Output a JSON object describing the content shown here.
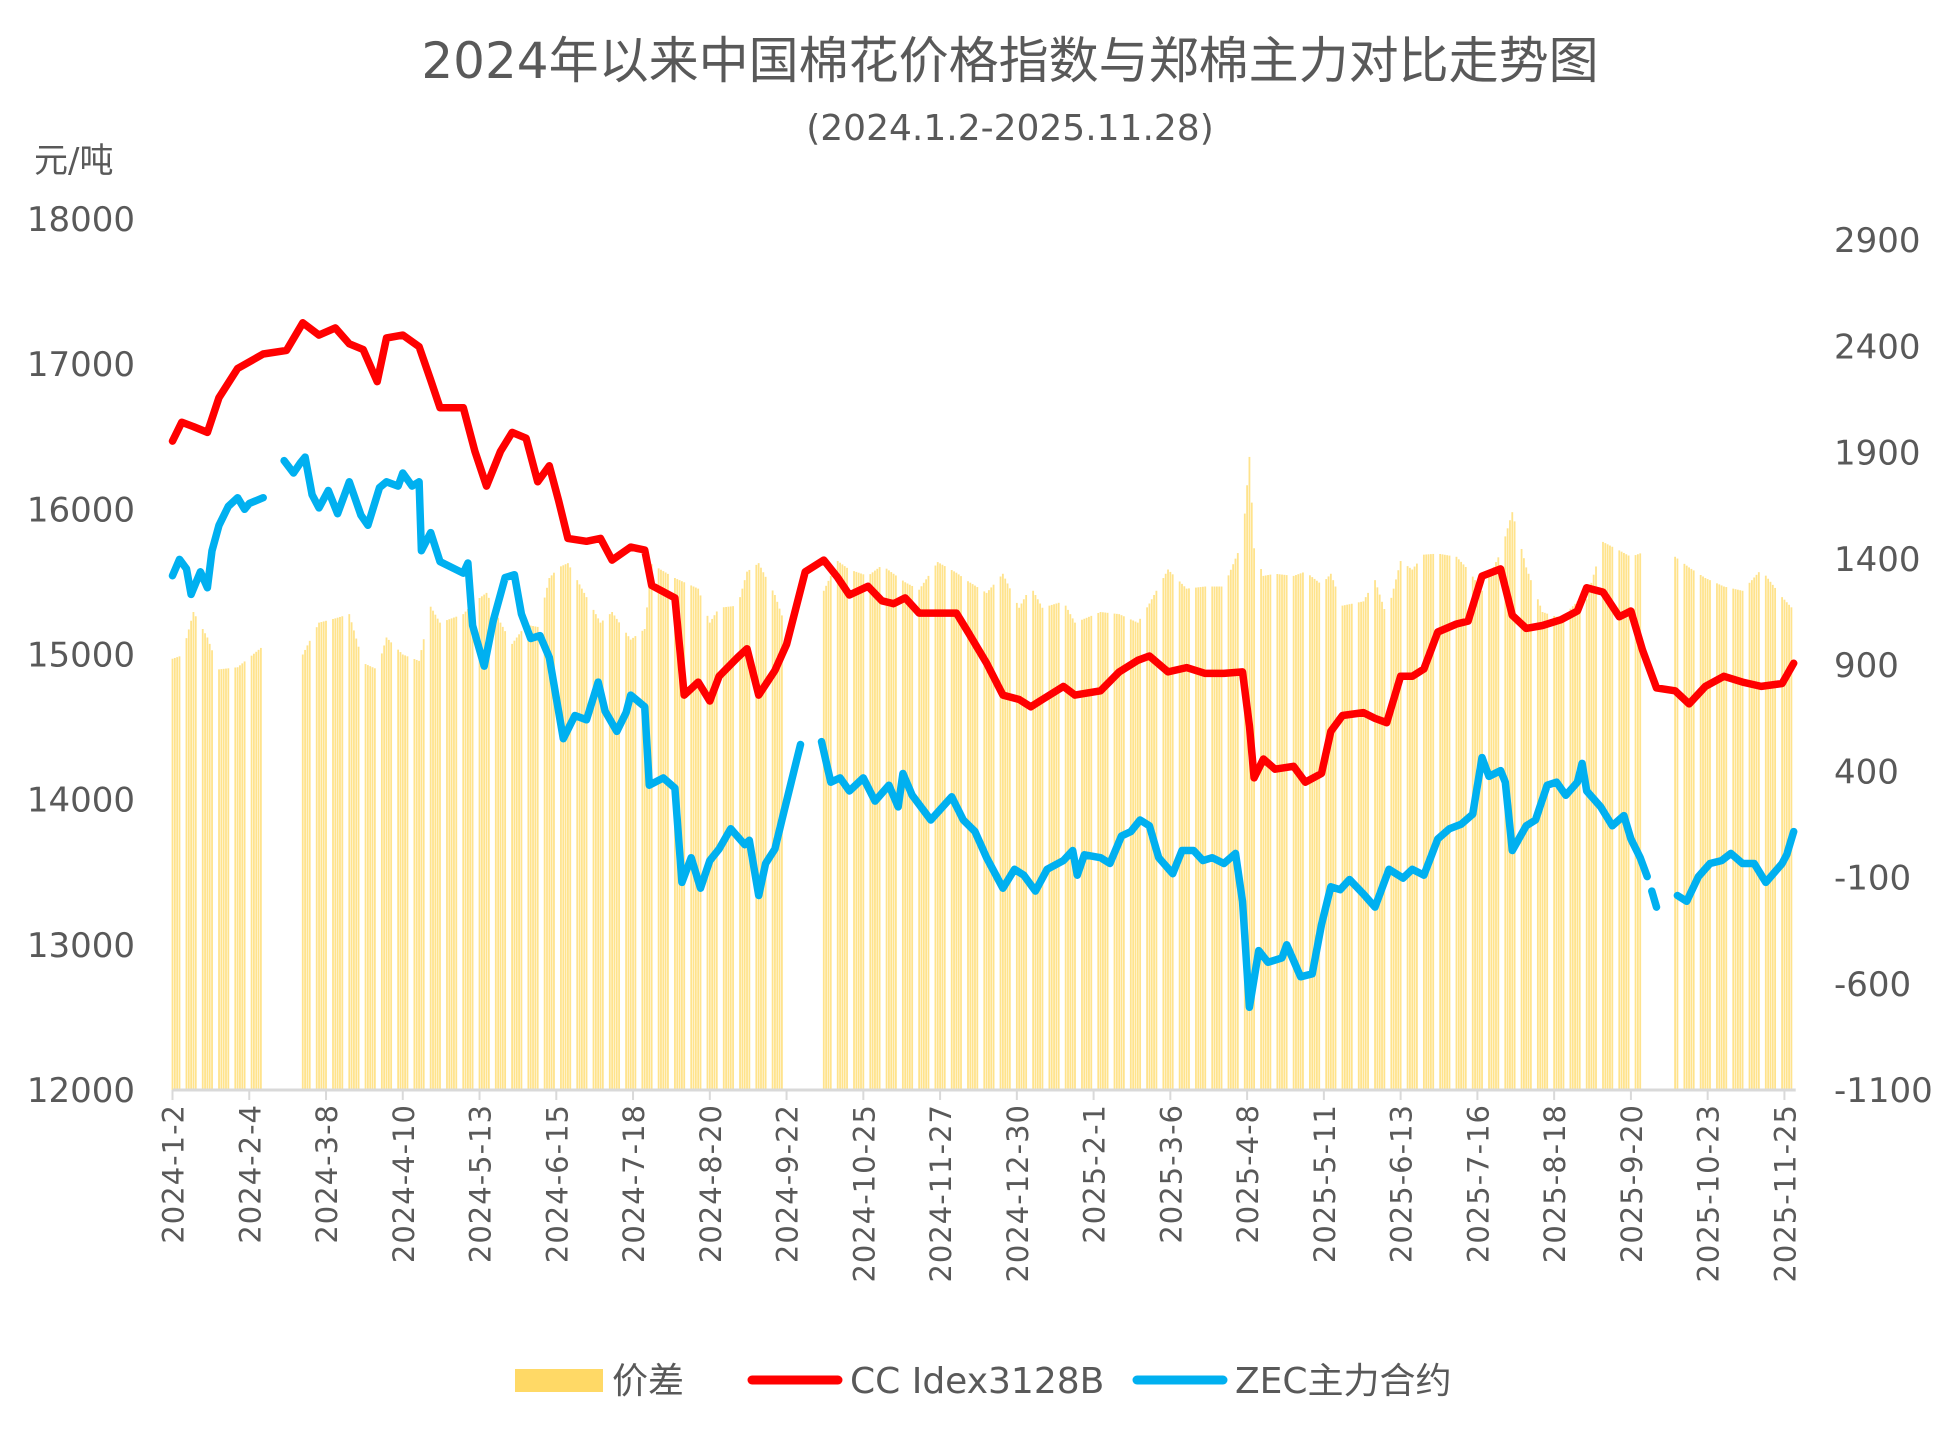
{
  "chart_data": {
    "type": "bar+line",
    "title": "2024年以来中国棉花价格指数与郑棉主力对比走势图",
    "subtitle": "(2024.1.2-2025.11.28)",
    "ylabel_left": "元/吨",
    "ylim_left": [
      12000,
      18000
    ],
    "yticks_left": [
      "18000",
      "17000",
      "16000",
      "15000",
      "14000",
      "13000",
      "12000"
    ],
    "ylim_right": [
      -1100,
      3000
    ],
    "yticks_right": [
      "2900",
      "2400",
      "1900",
      "1400",
      "900",
      "400",
      "-100",
      "-600",
      "-1100"
    ],
    "x_unit": "days since 2024-01-02",
    "xticks": [
      {
        "day": 0,
        "label": "2024-1-2"
      },
      {
        "day": 33,
        "label": "2024-2-4"
      },
      {
        "day": 66,
        "label": "2024-3-8"
      },
      {
        "day": 99,
        "label": "2024-4-10"
      },
      {
        "day": 132,
        "label": "2024-5-13"
      },
      {
        "day": 165,
        "label": "2024-6-15"
      },
      {
        "day": 198,
        "label": "2024-7-18"
      },
      {
        "day": 231,
        "label": "2024-8-20"
      },
      {
        "day": 264,
        "label": "2024-9-22"
      },
      {
        "day": 297,
        "label": "2024-10-25"
      },
      {
        "day": 330,
        "label": "2024-11-27"
      },
      {
        "day": 363,
        "label": "2024-12-30"
      },
      {
        "day": 396,
        "label": "2025-2-1"
      },
      {
        "day": 429,
        "label": "2025-3-6"
      },
      {
        "day": 462,
        "label": "2025-4-8"
      },
      {
        "day": 495,
        "label": "2025-5-11"
      },
      {
        "day": 528,
        "label": "2025-6-13"
      },
      {
        "day": 561,
        "label": "2025-7-16"
      },
      {
        "day": 594,
        "label": "2025-8-18"
      },
      {
        "day": 627,
        "label": "2025-9-20"
      },
      {
        "day": 660,
        "label": "2025-10-23"
      },
      {
        "day": 693,
        "label": "2025-11-25"
      }
    ],
    "grid": false,
    "legend_position": "bottom",
    "series": [
      {
        "name": "价差",
        "type": "bar",
        "axis": "right",
        "color": "#FFD966",
        "x": [
          0,
          4,
          9,
          15,
          20,
          28,
          39,
          49,
          56,
          63,
          70,
          76,
          82,
          88,
          92,
          99,
          106,
          111,
          115,
          125,
          130,
          135,
          141,
          146,
          152,
          157,
          162,
          166,
          170,
          178,
          184,
          189,
          197,
          203,
          206,
          216,
          220,
          226,
          231,
          235,
          243,
          247,
          252,
          259,
          264,
          272,
          280,
          286,
          291,
          299,
          305,
          310,
          315,
          321,
          329,
          337,
          342,
          350,
          357,
          364,
          369,
          374,
          383,
          388,
          399,
          407,
          415,
          420,
          428,
          436,
          444,
          452,
          460,
          463,
          465,
          469,
          474,
          482,
          487,
          494,
          498,
          503,
          512,
          517,
          522,
          528,
          533,
          538,
          544,
          552,
          557,
          563,
          571,
          576,
          582,
          589,
          597,
          604,
          608,
          615,
          622,
          627,
          632,
          638,
          646,
          652,
          659,
          667,
          675,
          683,
          692,
          697
        ],
        "values": [
          930,
          945,
          1150,
          1030,
          880,
          890,
          990,
          null,
          950,
          1100,
          1120,
          1140,
          910,
          880,
          1030,
          950,
          920,
          1175,
          1100,
          1140,
          1200,
          1240,
          1100,
          1000,
          1090,
          1080,
          1310,
          1360,
          1380,
          1220,
          1100,
          1150,
          1020,
          1070,
          1375,
          1310,
          1290,
          1260,
          1100,
          1170,
          1180,
          1340,
          1380,
          1230,
          1070,
          null,
          1250,
          1390,
          1350,
          1320,
          1370,
          1330,
          1290,
          1255,
          1385,
          1335,
          1295,
          1240,
          1330,
          1170,
          1270,
          1170,
          1200,
          1100,
          1150,
          1140,
          1100,
          1190,
          1350,
          1260,
          1270,
          1270,
          1480,
          1880,
          1450,
          1320,
          1330,
          1320,
          1340,
          1280,
          1330,
          1180,
          1200,
          1300,
          1130,
          1390,
          1350,
          1420,
          1425,
          1410,
          1350,
          1250,
          1430,
          1620,
          1360,
          1150,
          1120,
          1200,
          1210,
          1480,
          1440,
          1410,
          1430,
          null,
          1410,
          1360,
          1310,
          1270,
          1250,
          1350,
          1220,
          1160
        ]
      },
      {
        "name": "CC Idex3128B",
        "type": "line",
        "axis": "left",
        "color": "#FF0000",
        "x": [
          0,
          4,
          9,
          15,
          20,
          28,
          39,
          49,
          56,
          63,
          70,
          76,
          82,
          88,
          92,
          99,
          106,
          111,
          115,
          125,
          130,
          135,
          141,
          146,
          152,
          157,
          162,
          166,
          170,
          178,
          184,
          189,
          197,
          203,
          206,
          216,
          220,
          226,
          231,
          235,
          243,
          247,
          252,
          259,
          264,
          272,
          280,
          286,
          291,
          299,
          305,
          310,
          315,
          321,
          329,
          337,
          342,
          350,
          357,
          364,
          369,
          374,
          383,
          388,
          399,
          407,
          415,
          420,
          428,
          436,
          444,
          452,
          460,
          463,
          465,
          469,
          474,
          482,
          487,
          494,
          498,
          503,
          512,
          517,
          522,
          528,
          533,
          538,
          544,
          552,
          557,
          563,
          571,
          576,
          582,
          589,
          597,
          604,
          608,
          615,
          622,
          627,
          632,
          638,
          646,
          652,
          659,
          667,
          675,
          683,
          692,
          697
        ],
        "values": [
          16470,
          16600,
          16570,
          16530,
          16770,
          16970,
          17070,
          17095,
          17285,
          17200,
          17250,
          17140,
          17100,
          16880,
          17180,
          17200,
          17120,
          16890,
          16700,
          16700,
          16400,
          16160,
          16400,
          16530,
          16490,
          16190,
          16300,
          16060,
          15800,
          15780,
          15800,
          15650,
          15740,
          15720,
          15475,
          15390,
          14720,
          14810,
          14680,
          14850,
          14980,
          15040,
          14720,
          14890,
          15070,
          15570,
          15650,
          15530,
          15410,
          15470,
          15370,
          15350,
          15390,
          15285,
          15285,
          15285,
          15155,
          14940,
          14720,
          14690,
          14640,
          14690,
          14780,
          14720,
          14750,
          14880,
          14960,
          14990,
          14880,
          14910,
          14870,
          14870,
          14880,
          14510,
          14150,
          14280,
          14210,
          14230,
          14120,
          14180,
          14470,
          14580,
          14600,
          14560,
          14530,
          14850,
          14850,
          14900,
          15155,
          15210,
          15230,
          15540,
          15590,
          15270,
          15180,
          15200,
          15240,
          15300,
          15460,
          15430,
          15260,
          15300,
          15030,
          14770,
          14750,
          14660,
          14780,
          14850,
          14810,
          14780,
          14800,
          14940
        ]
      },
      {
        "name": "ZEC主力合约",
        "type": "line",
        "axis": "left",
        "color": "#00B0F0",
        "x": [
          0,
          3,
          6,
          8,
          12,
          15,
          17,
          20,
          24,
          28,
          31,
          33,
          39,
          45,
          48,
          52,
          55,
          57,
          60,
          63,
          67,
          71,
          76,
          81,
          84,
          89,
          92,
          97,
          99,
          103,
          106,
          107,
          111,
          115,
          125,
          127,
          129,
          134,
          138,
          143,
          147,
          150,
          154,
          158,
          162,
          168,
          173,
          178,
          183,
          186,
          191,
          195,
          197,
          203,
          205,
          211,
          216,
          219,
          223,
          227,
          231,
          235,
          240,
          246,
          248,
          252,
          255,
          259,
          262,
          266,
          270,
          275,
          279,
          283,
          287,
          291,
          297,
          302,
          308,
          312,
          314,
          318,
          326,
          335,
          340,
          345,
          350,
          357,
          362,
          366,
          371,
          376,
          383,
          387,
          389,
          392,
          399,
          403,
          408,
          412,
          416,
          420,
          424,
          430,
          434,
          439,
          443,
          447,
          452,
          457,
          460,
          463,
          467,
          471,
          477,
          479,
          485,
          490,
          494,
          498,
          502,
          506,
          512,
          517,
          523,
          529,
          533,
          538,
          544,
          549,
          554,
          559,
          563,
          566,
          571,
          573,
          576,
          582,
          586,
          591,
          595,
          599,
          604,
          606,
          608,
          614,
          619,
          624,
          627,
          631,
          634,
          635,
          636,
          638,
          641,
          647,
          651,
          656,
          661,
          666,
          670,
          675,
          680,
          685,
          692,
          694,
          697
        ],
        "values": [
          15543,
          15655,
          15590,
          15414,
          15570,
          15460,
          15715,
          15890,
          16020,
          16080,
          16000,
          16040,
          16080,
          null,
          16336,
          16250,
          16320,
          16360,
          16100,
          16010,
          16130,
          15970,
          16190,
          15960,
          15890,
          16150,
          16190,
          16160,
          16250,
          16160,
          16190,
          15715,
          15840,
          15640,
          15560,
          15630,
          15200,
          14920,
          15240,
          15530,
          15550,
          15280,
          15110,
          15130,
          14980,
          14420,
          14580,
          14550,
          14810,
          14610,
          14470,
          14600,
          14720,
          14640,
          14100,
          14150,
          14080,
          13430,
          13600,
          13390,
          13580,
          13660,
          13800,
          13690,
          13720,
          13340,
          13560,
          13660,
          13860,
          14120,
          14380,
          null,
          14400,
          14120,
          14150,
          14060,
          14150,
          13990,
          14100,
          13950,
          14180,
          14030,
          13860,
          14020,
          13860,
          13780,
          13600,
          13390,
          13520,
          13480,
          13370,
          13520,
          13580,
          13650,
          13480,
          13620,
          13600,
          13560,
          13750,
          13780,
          13860,
          13820,
          13600,
          13490,
          13650,
          13650,
          13580,
          13600,
          13560,
          13630,
          13300,
          12570,
          12960,
          12880,
          12910,
          13000,
          12780,
          12800,
          13140,
          13400,
          13380,
          13450,
          13350,
          13260,
          13520,
          13460,
          13520,
          13480,
          13730,
          13800,
          13830,
          13900,
          14290,
          14160,
          14200,
          14120,
          13650,
          13820,
          13860,
          14100,
          14120,
          14030,
          14120,
          14250,
          14060,
          13950,
          13820,
          13890,
          13730,
          13600,
          13470,
          null,
          13370,
          13260,
          null,
          13340,
          13300,
          13470,
          13560,
          13580,
          13630,
          13560,
          13560,
          13430,
          13560,
          13620,
          13780
        ]
      }
    ]
  }
}
